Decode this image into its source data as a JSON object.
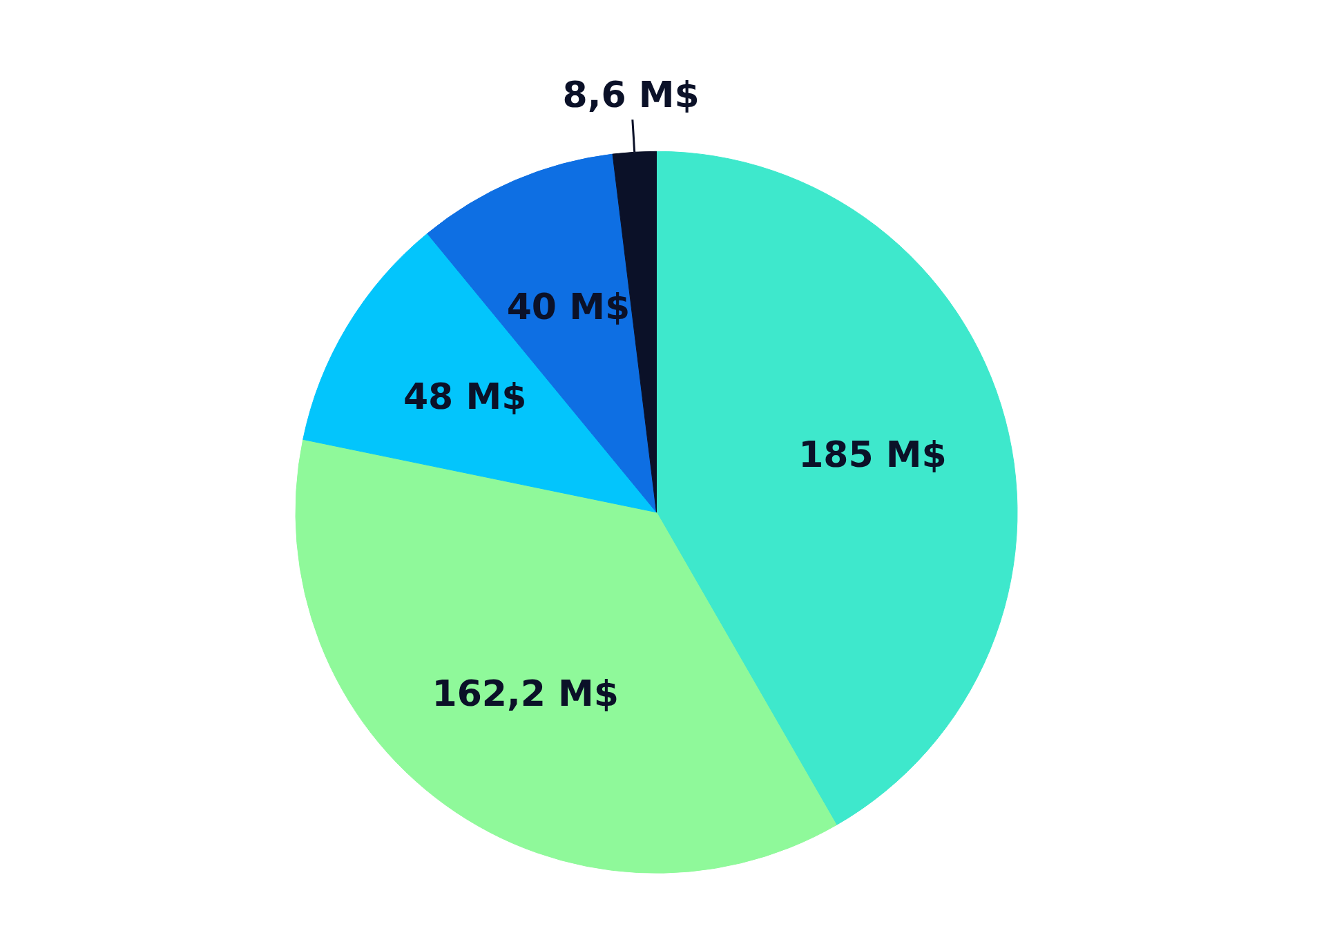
{
  "chart_data": {
    "type": "pie",
    "categories": [
      null,
      null,
      null,
      null,
      null
    ],
    "values": [
      185,
      162.2,
      48,
      40,
      8.6
    ],
    "colors": [
      "#3ee8cc",
      "#8ff99a",
      "#03c5fc",
      "#0e6fe3",
      "#0b1128"
    ],
    "value_labels": [
      "185 M$",
      "162,2 M$",
      "48 M$",
      "40 M$",
      "8,6 M$"
    ]
  }
}
